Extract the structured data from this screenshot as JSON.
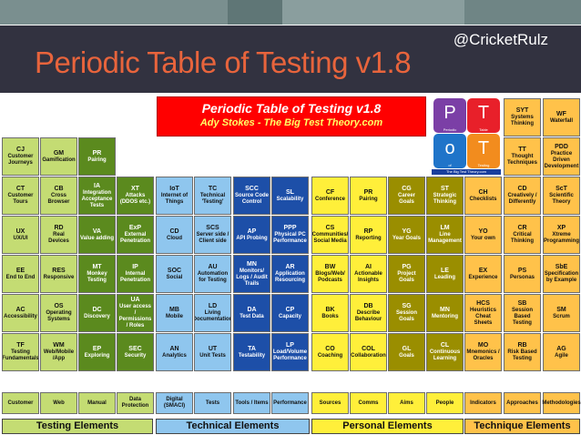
{
  "handle": "@CricketRulz",
  "slide_title": "Periodic Table of Testing v1.8",
  "header": {
    "title": "Periodic Table of Testing v1.8",
    "subtitle": "Ady Stokes - The Big Test Theory.com"
  },
  "logo": {
    "tiles": [
      {
        "letter": "P",
        "caption": "Periodic",
        "color": "#7b3fa6"
      },
      {
        "letter": "T",
        "caption": "Table",
        "color": "#e8202a"
      },
      {
        "letter": "o",
        "caption": "of",
        "color": "#1f74c9"
      },
      {
        "letter": "T",
        "caption": "Testing",
        "color": "#f28c1e"
      }
    ],
    "footer": "The Big Test Theory.com"
  },
  "colors": {
    "testing_dark": "#5b8a1e",
    "testing_light": "#c4dc73",
    "technical_dark": "#1d4fa8",
    "technical_light": "#8fc6ee",
    "personal_dark": "#9a8e00",
    "personal_light": "#ffef3a",
    "technique_dark": "#e06d00",
    "technique_light": "#ffc24a",
    "header_red": "#ff0000"
  },
  "elements": [
    {
      "sym": "CJ",
      "name": "Customer Journeys",
      "col": 0,
      "row": 0,
      "group": "testing",
      "tone": "light"
    },
    {
      "sym": "GM",
      "name": "Gamification",
      "col": 1,
      "row": 0,
      "group": "testing",
      "tone": "light"
    },
    {
      "sym": "PR",
      "name": "Pairing",
      "col": 2,
      "row": 0,
      "group": "testing",
      "tone": "dark"
    },
    {
      "sym": "CT",
      "name": "Customer Tours",
      "col": 0,
      "row": 1,
      "group": "testing",
      "tone": "light"
    },
    {
      "sym": "CB",
      "name": "Cross Browser",
      "col": 1,
      "row": 1,
      "group": "testing",
      "tone": "light"
    },
    {
      "sym": "IA",
      "name": "Integration Acceptance Tests",
      "col": 2,
      "row": 1,
      "group": "testing",
      "tone": "dark"
    },
    {
      "sym": "UX",
      "name": "UX/UI",
      "col": 0,
      "row": 2,
      "group": "testing",
      "tone": "light"
    },
    {
      "sym": "RD",
      "name": "Real Devices",
      "col": 1,
      "row": 2,
      "group": "testing",
      "tone": "light"
    },
    {
      "sym": "VA",
      "name": "Value adding",
      "col": 2,
      "row": 2,
      "group": "testing",
      "tone": "dark"
    },
    {
      "sym": "EE",
      "name": "End to End",
      "col": 0,
      "row": 3,
      "group": "testing",
      "tone": "light"
    },
    {
      "sym": "RES",
      "name": "Responsive",
      "col": 1,
      "row": 3,
      "group": "testing",
      "tone": "light"
    },
    {
      "sym": "MT",
      "name": "Monkey Testing",
      "col": 2,
      "row": 3,
      "group": "testing",
      "tone": "dark"
    },
    {
      "sym": "AC",
      "name": "Accessibility",
      "col": 0,
      "row": 4,
      "group": "testing",
      "tone": "light"
    },
    {
      "sym": "OS",
      "name": "Operating Systems",
      "col": 1,
      "row": 4,
      "group": "testing",
      "tone": "light"
    },
    {
      "sym": "DC",
      "name": "Discovery",
      "col": 2,
      "row": 4,
      "group": "testing",
      "tone": "dark"
    },
    {
      "sym": "TF",
      "name": "Testing Fundamentals",
      "col": 0,
      "row": 5,
      "group": "testing",
      "tone": "light"
    },
    {
      "sym": "WM",
      "name": "Web/Mobile /App",
      "col": 1,
      "row": 5,
      "group": "testing",
      "tone": "light"
    },
    {
      "sym": "EP",
      "name": "Exploring",
      "col": 2,
      "row": 5,
      "group": "testing",
      "tone": "dark"
    },
    {
      "sym": "XT",
      "name": "Attacks (DDOS etc.)",
      "col": 3,
      "row": 1,
      "group": "testing",
      "tone": "dark"
    },
    {
      "sym": "ExP",
      "name": "External Penetration",
      "col": 3,
      "row": 2,
      "group": "testing",
      "tone": "dark"
    },
    {
      "sym": "IP",
      "name": "Internal Penetration",
      "col": 3,
      "row": 3,
      "group": "testing",
      "tone": "dark"
    },
    {
      "sym": "UA",
      "name": "User access / Permissions / Roles",
      "col": 3,
      "row": 4,
      "group": "testing",
      "tone": "dark"
    },
    {
      "sym": "SEC",
      "name": "Security",
      "col": 3,
      "row": 5,
      "group": "testing",
      "tone": "dark"
    },
    {
      "sym": "IoT",
      "name": "Internet of Things",
      "col": 4,
      "row": 1,
      "group": "technical",
      "tone": "light"
    },
    {
      "sym": "TC",
      "name": "Technical 'Testing'",
      "col": 5,
      "row": 1,
      "group": "technical",
      "tone": "light"
    },
    {
      "sym": "SCC",
      "name": "Source Code Control",
      "col": 6,
      "row": 1,
      "group": "technical",
      "tone": "dark"
    },
    {
      "sym": "SL",
      "name": "Scalability",
      "col": 7,
      "row": 1,
      "group": "technical",
      "tone": "dark"
    },
    {
      "sym": "CD",
      "name": "Cloud",
      "col": 4,
      "row": 2,
      "group": "technical",
      "tone": "light"
    },
    {
      "sym": "SCS",
      "name": "Server side / Client side",
      "col": 5,
      "row": 2,
      "group": "technical",
      "tone": "light"
    },
    {
      "sym": "AP",
      "name": "API Probing",
      "col": 6,
      "row": 2,
      "group": "technical",
      "tone": "dark"
    },
    {
      "sym": "PPP",
      "name": "Physical PC Performance",
      "col": 7,
      "row": 2,
      "group": "technical",
      "tone": "dark"
    },
    {
      "sym": "SOC",
      "name": "Social",
      "col": 4,
      "row": 3,
      "group": "technical",
      "tone": "light"
    },
    {
      "sym": "AU",
      "name": "Automation for Testing",
      "col": 5,
      "row": 3,
      "group": "technical",
      "tone": "light"
    },
    {
      "sym": "MN",
      "name": "Monitors/ Logs / Audit Trails",
      "col": 6,
      "row": 3,
      "group": "technical",
      "tone": "dark"
    },
    {
      "sym": "AR",
      "name": "Application Resourcing",
      "col": 7,
      "row": 3,
      "group": "technical",
      "tone": "dark"
    },
    {
      "sym": "MB",
      "name": "Mobile",
      "col": 4,
      "row": 4,
      "group": "technical",
      "tone": "light"
    },
    {
      "sym": "LD",
      "name": "Living Documentation",
      "col": 5,
      "row": 4,
      "group": "technical",
      "tone": "light"
    },
    {
      "sym": "DA",
      "name": "Test Data",
      "col": 6,
      "row": 4,
      "group": "technical",
      "tone": "dark"
    },
    {
      "sym": "CP",
      "name": "Capacity",
      "col": 7,
      "row": 4,
      "group": "technical",
      "tone": "dark"
    },
    {
      "sym": "AN",
      "name": "Analytics",
      "col": 4,
      "row": 5,
      "group": "technical",
      "tone": "light"
    },
    {
      "sym": "UT",
      "name": "Unit Tests",
      "col": 5,
      "row": 5,
      "group": "technical",
      "tone": "light"
    },
    {
      "sym": "TA",
      "name": "Testability",
      "col": 6,
      "row": 5,
      "group": "technical",
      "tone": "dark"
    },
    {
      "sym": "LP",
      "name": "Load/Volume Performance",
      "col": 7,
      "row": 5,
      "group": "technical",
      "tone": "dark"
    },
    {
      "sym": "CF",
      "name": "Conference",
      "col": 8,
      "row": 1,
      "group": "personal",
      "tone": "light"
    },
    {
      "sym": "PR",
      "name": "Pairing",
      "col": 9,
      "row": 1,
      "group": "personal",
      "tone": "light"
    },
    {
      "sym": "CG",
      "name": "Career Goals",
      "col": 10,
      "row": 1,
      "group": "personal",
      "tone": "dark"
    },
    {
      "sym": "ST",
      "name": "Strategic Thinking",
      "col": 11,
      "row": 1,
      "group": "personal",
      "tone": "dark"
    },
    {
      "sym": "CS",
      "name": "Communities/ Social Media",
      "col": 8,
      "row": 2,
      "group": "personal",
      "tone": "light"
    },
    {
      "sym": "RP",
      "name": "Reporting",
      "col": 9,
      "row": 2,
      "group": "personal",
      "tone": "light"
    },
    {
      "sym": "YG",
      "name": "Year Goals",
      "col": 10,
      "row": 2,
      "group": "personal",
      "tone": "dark"
    },
    {
      "sym": "LM",
      "name": "Line Management",
      "col": 11,
      "row": 2,
      "group": "personal",
      "tone": "dark"
    },
    {
      "sym": "BW",
      "name": "Blogs/Web/ Podcasts",
      "col": 8,
      "row": 3,
      "group": "personal",
      "tone": "light"
    },
    {
      "sym": "AI",
      "name": "Actionable Insights",
      "col": 9,
      "row": 3,
      "group": "personal",
      "tone": "light"
    },
    {
      "sym": "PG",
      "name": "Project Goals",
      "col": 10,
      "row": 3,
      "group": "personal",
      "tone": "dark"
    },
    {
      "sym": "LE",
      "name": "Leading",
      "col": 11,
      "row": 3,
      "group": "personal",
      "tone": "dark"
    },
    {
      "sym": "BK",
      "name": "Books",
      "col": 8,
      "row": 4,
      "group": "personal",
      "tone": "light"
    },
    {
      "sym": "DB",
      "name": "Describe Behaviour",
      "col": 9,
      "row": 4,
      "group": "personal",
      "tone": "light"
    },
    {
      "sym": "SG",
      "name": "Session Goals",
      "col": 10,
      "row": 4,
      "group": "personal",
      "tone": "dark"
    },
    {
      "sym": "MN",
      "name": "Mentoring",
      "col": 11,
      "row": 4,
      "group": "personal",
      "tone": "dark"
    },
    {
      "sym": "CO",
      "name": "Coaching",
      "col": 8,
      "row": 5,
      "group": "personal",
      "tone": "light"
    },
    {
      "sym": "COL",
      "name": "Collaboration",
      "col": 9,
      "row": 5,
      "group": "personal",
      "tone": "light"
    },
    {
      "sym": "GL",
      "name": "Goals",
      "col": 10,
      "row": 5,
      "group": "personal",
      "tone": "dark"
    },
    {
      "sym": "CL",
      "name": "Continuous Learning",
      "col": 11,
      "row": 5,
      "group": "personal",
      "tone": "dark"
    },
    {
      "sym": "CH",
      "name": "Checklists",
      "col": 12,
      "row": 1,
      "group": "technique",
      "tone": "light"
    },
    {
      "sym": "CD",
      "name": "Creatively / Differently",
      "col": 13,
      "row": 1,
      "group": "technique",
      "tone": "light"
    },
    {
      "sym": "ScT",
      "name": "Scientific Theory",
      "col": 14,
      "row": 1,
      "group": "technique",
      "tone": "light"
    },
    {
      "sym": "YO",
      "name": "Your own",
      "col": 12,
      "row": 2,
      "group": "technique",
      "tone": "light"
    },
    {
      "sym": "CR",
      "name": "Critical Thinking",
      "col": 13,
      "row": 2,
      "group": "technique",
      "tone": "light"
    },
    {
      "sym": "XP",
      "name": "Xtreme Programming",
      "col": 14,
      "row": 2,
      "group": "technique",
      "tone": "light"
    },
    {
      "sym": "EX",
      "name": "Experience",
      "col": 12,
      "row": 3,
      "group": "technique",
      "tone": "light"
    },
    {
      "sym": "PS",
      "name": "Personas",
      "col": 13,
      "row": 3,
      "group": "technique",
      "tone": "light"
    },
    {
      "sym": "SbE",
      "name": "Specification by Example",
      "col": 14,
      "row": 3,
      "group": "technique",
      "tone": "light"
    },
    {
      "sym": "HCS",
      "name": "Heuristics Cheat Sheets",
      "col": 12,
      "row": 4,
      "group": "technique",
      "tone": "light"
    },
    {
      "sym": "SB",
      "name": "Session Based Testing",
      "col": 13,
      "row": 4,
      "group": "technique",
      "tone": "light"
    },
    {
      "sym": "SM",
      "name": "Scrum",
      "col": 14,
      "row": 4,
      "group": "technique",
      "tone": "light"
    },
    {
      "sym": "MO",
      "name": "Mnemonics / Oracles",
      "col": 12,
      "row": 5,
      "group": "technique",
      "tone": "light"
    },
    {
      "sym": "RB",
      "name": "Risk Based Testing",
      "col": 13,
      "row": 5,
      "group": "technique",
      "tone": "light"
    },
    {
      "sym": "AG",
      "name": "Agile",
      "col": 14,
      "row": 5,
      "group": "technique",
      "tone": "light"
    },
    {
      "sym": "SYT",
      "name": "Systems Thinking",
      "col": 13,
      "row": -1,
      "group": "technique",
      "tone": "light"
    },
    {
      "sym": "WF",
      "name": "Waterfall",
      "col": 14,
      "row": -1,
      "group": "technique",
      "tone": "light"
    },
    {
      "sym": "TT",
      "name": "Thought Techniques",
      "col": 13,
      "row": 0,
      "group": "technique",
      "tone": "light"
    },
    {
      "sym": "PDD",
      "name": "Practice Driven Development",
      "col": 14,
      "row": 0,
      "group": "technique",
      "tone": "light"
    }
  ],
  "categories": [
    {
      "label": "Customer",
      "col": 0,
      "group": "testing"
    },
    {
      "label": "Web",
      "col": 1,
      "group": "testing"
    },
    {
      "label": "Manual",
      "col": 2,
      "group": "testing"
    },
    {
      "label": "Data Protection",
      "col": 3,
      "group": "testing"
    },
    {
      "label": "Digital (SMACI)",
      "col": 4,
      "group": "technical"
    },
    {
      "label": "Tests",
      "col": 5,
      "group": "technical"
    },
    {
      "label": "Tools / Items",
      "col": 6,
      "group": "technical"
    },
    {
      "label": "Performance",
      "col": 7,
      "group": "technical"
    },
    {
      "label": "Sources",
      "col": 8,
      "group": "personal"
    },
    {
      "label": "Comms",
      "col": 9,
      "group": "personal"
    },
    {
      "label": "Aims",
      "col": 10,
      "group": "personal"
    },
    {
      "label": "People",
      "col": 11,
      "group": "personal"
    },
    {
      "label": "Indicators",
      "col": 12,
      "group": "technique"
    },
    {
      "label": "Approaches",
      "col": 13,
      "group": "technique"
    },
    {
      "label": "Methodologies",
      "col": 14,
      "group": "technique"
    }
  ],
  "legend": [
    {
      "label": "Testing Elements",
      "group": "testing"
    },
    {
      "label": "Technical Elements",
      "group": "technical"
    },
    {
      "label": "Personal Elements",
      "group": "personal"
    },
    {
      "label": "Technique Elements",
      "group": "technique"
    }
  ]
}
